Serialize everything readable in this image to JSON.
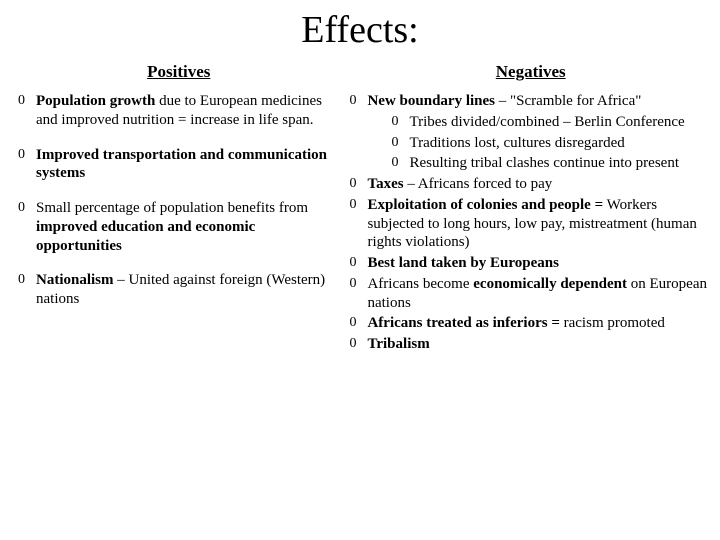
{
  "title": "Effects:",
  "positives_heading": "Positives",
  "negatives_heading": "Negatives",
  "positives": {
    "i0_pre": "Population growth",
    "i0_post": " due to European medicines and improved nutrition = increase in life span.",
    "i1": "Improved transportation and communication systems",
    "i2_pre": "Small percentage of population benefits from ",
    "i2_bold": "improved education and economic opportunities",
    "i3_bold": "Nationalism",
    "i3_post": " – United against foreign (Western) nations"
  },
  "negatives": {
    "n0_bold": "New boundary lines",
    "n0_post": " – \"Scramble for Africa\"",
    "n0_sub0": "Tribes divided/combined – Berlin Conference",
    "n0_sub1": "Traditions lost, cultures disregarded",
    "n0_sub2": "Resulting tribal clashes continue into present",
    "n1_bold": "Taxes",
    "n1_post": " – Africans forced to pay",
    "n2_bold": "Exploitation of colonies and people =",
    "n2_post": " Workers subjected to long hours, low pay, mistreatment (human rights violations)",
    "n3": "Best land taken by Europeans",
    "n4_pre": "Africans become ",
    "n4_bold": "economically dependent",
    "n4_post": " on European nations",
    "n5_bold": "Africans treated as inferiors =",
    "n5_post": " racism promoted",
    "n6": "Tribalism"
  },
  "colors": {
    "background": "#ffffff",
    "text": "#000000"
  },
  "fonts": {
    "title_size_pt": 38,
    "subheading_size_pt": 17,
    "body_size_pt": 15
  }
}
